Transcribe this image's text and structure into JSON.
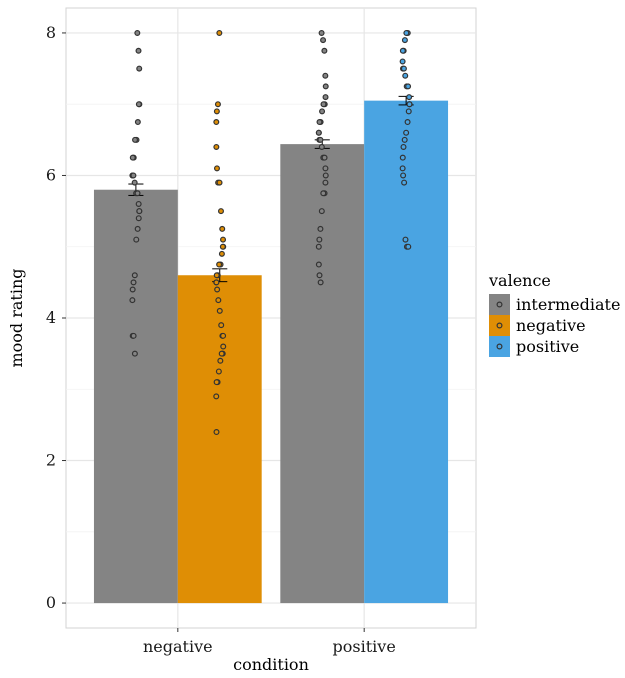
{
  "chart_data": {
    "type": "bar",
    "xlabel": "condition",
    "ylabel": "mood rating",
    "categories": [
      "negative",
      "positive"
    ],
    "ylim": [
      -0.35,
      8.35
    ],
    "yticks": [
      0,
      2,
      4,
      6,
      8
    ],
    "grid": true,
    "legend": {
      "title": "valence",
      "position": "right"
    },
    "series": [
      {
        "name": "intermediate",
        "color": "#848484",
        "values": [
          5.8,
          6.44
        ],
        "errors": [
          0.08,
          0.06
        ]
      },
      {
        "name": "negative",
        "color": "#DF8E05",
        "values": [
          4.6,
          null
        ],
        "errors": [
          0.09,
          null
        ]
      },
      {
        "name": "positive",
        "color": "#4AA4E2",
        "values": [
          null,
          7.05
        ],
        "errors": [
          null,
          0.06
        ]
      }
    ],
    "points": [
      {
        "category": "negative",
        "series": "intermediate",
        "values": [
          8.0,
          7.75,
          7.5,
          7.0,
          7.0,
          6.75,
          6.5,
          6.5,
          6.25,
          6.25,
          6.0,
          6.0,
          6.0,
          5.9,
          5.75,
          5.75,
          5.6,
          5.5,
          5.5,
          5.4,
          5.25,
          5.1,
          4.6,
          4.5,
          4.4,
          4.25,
          3.75,
          3.75,
          3.5
        ]
      },
      {
        "category": "negative",
        "series": "negative",
        "values": [
          8.0,
          7.0,
          6.9,
          6.75,
          6.4,
          6.1,
          5.9,
          5.9,
          5.5,
          5.25,
          5.1,
          5.0,
          5.0,
          4.9,
          4.75,
          4.75,
          4.6,
          4.6,
          4.5,
          4.5,
          4.4,
          4.25,
          4.1,
          3.9,
          3.75,
          3.75,
          3.6,
          3.5,
          3.5,
          3.4,
          3.25,
          3.1,
          3.1,
          2.9,
          2.4
        ]
      },
      {
        "category": "positive",
        "series": "intermediate",
        "values": [
          8.0,
          7.9,
          7.75,
          7.4,
          7.25,
          7.1,
          7.0,
          7.0,
          6.9,
          6.75,
          6.75,
          6.6,
          6.6,
          6.5,
          6.5,
          6.4,
          6.25,
          6.25,
          6.1,
          6.0,
          5.9,
          5.75,
          5.75,
          5.5,
          5.25,
          5.1,
          5.0,
          4.75,
          4.6,
          4.5
        ]
      },
      {
        "category": "positive",
        "series": "positive",
        "values": [
          8.0,
          8.0,
          7.9,
          7.75,
          7.75,
          7.6,
          7.5,
          7.5,
          7.4,
          7.25,
          7.25,
          7.1,
          7.0,
          7.0,
          6.9,
          6.75,
          6.6,
          6.5,
          6.4,
          6.25,
          6.1,
          6.0,
          5.9,
          5.1,
          5.0,
          5.0
        ]
      }
    ]
  }
}
